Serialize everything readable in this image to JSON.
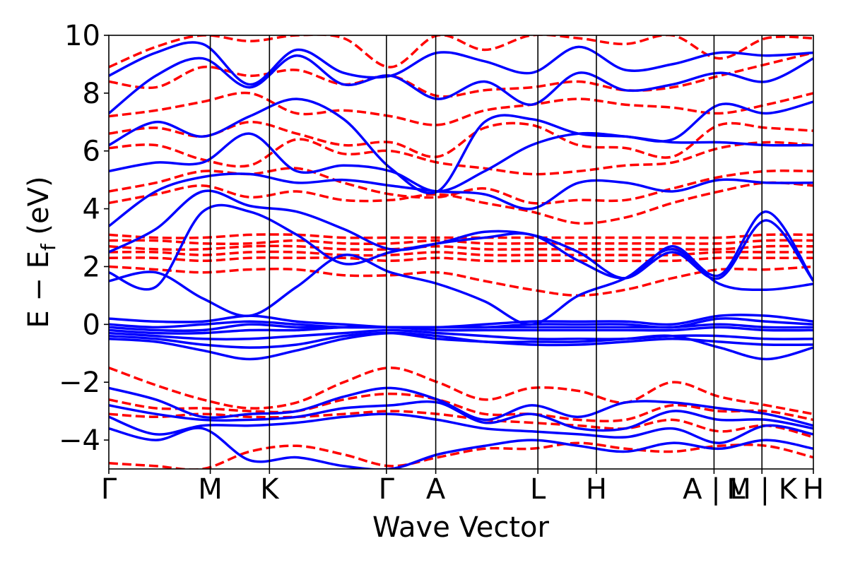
{
  "chart_data": {
    "type": "line",
    "title": "",
    "xlabel": "Wave Vector",
    "ylabel_main": "E − E",
    "ylabel_sub": "f",
    "ylabel_unit": " (eV)",
    "ylim": [
      -5,
      10
    ],
    "yticks": [
      -4,
      -2,
      0,
      2,
      4,
      6,
      8,
      10
    ],
    "ytick_labels": [
      "−4",
      "−2",
      "0",
      "2",
      "4",
      "6",
      "8",
      "10"
    ],
    "xlim": [
      0,
      1
    ],
    "kpoints": [
      {
        "label": "Γ",
        "pos": 0.0
      },
      {
        "label": "M",
        "pos": 0.144
      },
      {
        "label": "K",
        "pos": 0.228
      },
      {
        "label": "Γ",
        "pos": 0.394
      },
      {
        "label": "A",
        "pos": 0.464
      },
      {
        "label": "L",
        "pos": 0.609
      },
      {
        "label": "H",
        "pos": 0.692
      },
      {
        "label": "A | L",
        "pos": 0.859
      },
      {
        "label": "M | K",
        "pos": 0.927
      },
      {
        "label": "H",
        "pos": 1.0
      }
    ],
    "kpoint_lines": [
      0.144,
      0.228,
      0.394,
      0.464,
      0.609,
      0.692,
      0.859,
      0.927
    ],
    "grid": false,
    "legend": "none",
    "series": [
      {
        "style": "solid",
        "color": "#0000ff",
        "bands": [
          [
            8.6,
            9.4,
            9.7,
            8.3,
            9.5,
            8.7,
            8.6,
            9.4,
            9.1,
            8.7,
            9.6,
            8.8,
            9.0,
            9.4,
            9.3,
            9.4
          ],
          [
            7.3,
            8.6,
            9.2,
            8.2,
            9.3,
            8.3,
            8.6,
            7.8,
            8.4,
            7.6,
            8.7,
            8.1,
            8.3,
            8.7,
            8.4,
            9.2
          ],
          [
            6.2,
            7.0,
            6.5,
            7.2,
            7.8,
            7.1,
            5.4,
            4.6,
            7.0,
            7.1,
            6.6,
            6.5,
            6.4,
            7.6,
            7.3,
            7.7
          ],
          [
            5.3,
            5.6,
            5.6,
            6.6,
            5.3,
            5.5,
            5.3,
            4.6,
            5.3,
            6.2,
            6.6,
            6.5,
            6.3,
            6.3,
            6.2,
            6.2
          ],
          [
            3.4,
            4.6,
            5.1,
            5.2,
            4.9,
            5.0,
            4.8,
            4.6,
            4.5,
            4.0,
            4.9,
            4.9,
            4.6,
            5.0,
            4.9,
            4.9
          ],
          [
            2.5,
            3.3,
            4.6,
            4.1,
            3.9,
            3.3,
            2.6,
            2.8,
            3.2,
            3.1,
            2.5,
            1.6,
            2.7,
            1.7,
            3.9,
            1.5
          ],
          [
            1.8,
            1.3,
            3.9,
            3.9,
            3.1,
            2.1,
            2.5,
            2.8,
            3.0,
            3.1,
            2.2,
            1.6,
            2.5,
            1.6,
            3.6,
            1.5
          ],
          [
            1.5,
            1.8,
            0.9,
            0.3,
            1.3,
            2.4,
            1.8,
            1.4,
            0.8,
            0.0,
            1.0,
            1.6,
            2.6,
            1.4,
            1.2,
            1.4
          ],
          [
            0.2,
            0.1,
            0.1,
            0.3,
            0.1,
            0.0,
            -0.1,
            -0.1,
            0.0,
            0.1,
            0.1,
            0.1,
            0.0,
            0.3,
            0.3,
            0.1
          ],
          [
            0.0,
            -0.1,
            0.0,
            0.1,
            0.0,
            -0.1,
            -0.1,
            -0.1,
            -0.1,
            0.0,
            0.0,
            0.0,
            -0.1,
            0.2,
            0.1,
            0.0
          ],
          [
            -0.1,
            -0.2,
            -0.2,
            0.0,
            -0.1,
            -0.1,
            -0.1,
            -0.1,
            -0.1,
            -0.1,
            -0.1,
            -0.1,
            -0.1,
            0.0,
            -0.1,
            -0.1
          ],
          [
            -0.2,
            -0.3,
            -0.3,
            -0.2,
            -0.2,
            -0.1,
            -0.1,
            -0.2,
            -0.2,
            -0.2,
            -0.2,
            -0.2,
            -0.2,
            -0.1,
            -0.2,
            -0.2
          ],
          [
            -0.3,
            -0.4,
            -0.5,
            -0.5,
            -0.4,
            -0.3,
            -0.2,
            -0.3,
            -0.4,
            -0.5,
            -0.5,
            -0.5,
            -0.4,
            -0.4,
            -0.5,
            -0.5
          ],
          [
            -0.4,
            -0.5,
            -0.7,
            -0.8,
            -0.7,
            -0.4,
            -0.3,
            -0.5,
            -0.6,
            -0.7,
            -0.7,
            -0.6,
            -0.5,
            -0.6,
            -0.7,
            -0.7
          ],
          [
            -0.5,
            -0.6,
            -0.9,
            -1.2,
            -0.9,
            -0.5,
            -0.3,
            -0.4,
            -0.6,
            -0.6,
            -0.6,
            -0.5,
            -0.4,
            -0.8,
            -1.2,
            -0.8
          ],
          [
            -2.2,
            -2.6,
            -3.2,
            -3.1,
            -3.0,
            -2.5,
            -2.2,
            -2.6,
            -3.3,
            -2.8,
            -3.2,
            -2.7,
            -2.7,
            -2.9,
            -3.1,
            -3.5
          ],
          [
            -2.8,
            -3.1,
            -3.3,
            -3.3,
            -3.2,
            -2.9,
            -2.8,
            -2.7,
            -3.4,
            -3.1,
            -3.6,
            -3.6,
            -3.0,
            -3.3,
            -3.3,
            -3.6
          ],
          [
            -3.2,
            -3.8,
            -3.5,
            -3.5,
            -3.4,
            -3.2,
            -3.1,
            -3.3,
            -3.6,
            -3.7,
            -3.8,
            -3.9,
            -3.6,
            -4.1,
            -3.5,
            -3.8
          ],
          [
            -3.6,
            -4.0,
            -3.6,
            -4.7,
            -4.6,
            -4.9,
            -5.0,
            -4.5,
            -4.2,
            -4.0,
            -4.2,
            -4.4,
            -4.1,
            -4.3,
            -4.0,
            -4.3
          ]
        ]
      },
      {
        "style": "dashed",
        "color": "#ff0000",
        "bands": [
          [
            8.9,
            9.6,
            10.0,
            9.8,
            10.0,
            9.9,
            8.9,
            10.0,
            9.5,
            10.0,
            9.9,
            9.7,
            10.0,
            9.2,
            9.9,
            9.9
          ],
          [
            8.4,
            8.2,
            8.9,
            8.6,
            8.8,
            8.3,
            8.6,
            7.9,
            8.1,
            8.2,
            8.4,
            8.1,
            8.2,
            8.6,
            9.0,
            9.4
          ],
          [
            7.2,
            7.4,
            7.7,
            8.0,
            7.3,
            7.4,
            7.2,
            6.9,
            7.4,
            7.6,
            7.8,
            7.6,
            7.5,
            7.3,
            7.6,
            8.0
          ],
          [
            6.6,
            6.8,
            6.5,
            7.0,
            6.6,
            6.2,
            6.3,
            5.8,
            6.8,
            6.9,
            6.2,
            6.1,
            5.8,
            6.9,
            6.8,
            6.7
          ],
          [
            6.1,
            6.2,
            5.7,
            5.5,
            6.4,
            5.9,
            6.0,
            5.6,
            5.4,
            5.2,
            5.3,
            5.5,
            5.6,
            6.1,
            6.3,
            6.2
          ],
          [
            4.6,
            4.9,
            5.3,
            5.2,
            5.4,
            4.9,
            4.5,
            4.4,
            4.7,
            4.2,
            4.3,
            4.3,
            4.7,
            5.1,
            5.3,
            5.3
          ],
          [
            4.2,
            4.5,
            4.8,
            4.4,
            4.6,
            4.3,
            4.3,
            4.5,
            4.2,
            3.9,
            3.5,
            3.7,
            4.2,
            4.6,
            4.9,
            4.8
          ],
          [
            3.1,
            3.0,
            3.0,
            3.1,
            3.1,
            3.0,
            3.0,
            3.0,
            3.0,
            3.0,
            3.0,
            3.0,
            3.0,
            3.0,
            3.1,
            3.1
          ],
          [
            2.9,
            2.9,
            2.8,
            2.8,
            2.9,
            2.8,
            2.8,
            2.9,
            2.8,
            2.8,
            2.8,
            2.8,
            2.8,
            2.8,
            2.9,
            2.9
          ],
          [
            2.7,
            2.6,
            2.6,
            2.7,
            2.7,
            2.6,
            2.6,
            2.7,
            2.6,
            2.6,
            2.6,
            2.6,
            2.6,
            2.6,
            2.7,
            2.7
          ],
          [
            2.5,
            2.5,
            2.4,
            2.5,
            2.5,
            2.4,
            2.4,
            2.5,
            2.4,
            2.4,
            2.4,
            2.4,
            2.4,
            2.5,
            2.5,
            2.5
          ],
          [
            2.3,
            2.3,
            2.2,
            2.3,
            2.3,
            2.3,
            2.2,
            2.3,
            2.2,
            2.2,
            2.2,
            2.2,
            2.2,
            2.3,
            2.3,
            2.3
          ],
          [
            2.0,
            1.9,
            1.8,
            1.9,
            1.9,
            1.7,
            1.7,
            1.8,
            1.5,
            1.2,
            1.0,
            1.2,
            1.6,
            1.9,
            1.9,
            2.0
          ],
          [
            -1.5,
            -2.1,
            -2.6,
            -2.9,
            -2.7,
            -2.0,
            -1.5,
            -2.0,
            -2.6,
            -2.2,
            -2.3,
            -2.7,
            -2.0,
            -2.5,
            -2.8,
            -3.1
          ],
          [
            -2.6,
            -2.9,
            -2.9,
            -3.0,
            -3.0,
            -2.6,
            -2.4,
            -2.6,
            -3.1,
            -3.1,
            -3.3,
            -3.3,
            -2.8,
            -3.0,
            -3.0,
            -3.3
          ],
          [
            -3.1,
            -3.2,
            -3.1,
            -3.2,
            -3.2,
            -3.1,
            -3.0,
            -3.1,
            -3.3,
            -3.4,
            -3.5,
            -3.6,
            -3.3,
            -3.7,
            -3.5,
            -3.9
          ],
          [
            -4.8,
            -4.9,
            -5.0,
            -4.4,
            -4.2,
            -4.5,
            -4.9,
            -4.6,
            -4.3,
            -4.3,
            -4.1,
            -4.3,
            -4.4,
            -4.2,
            -4.2,
            -4.6
          ]
        ]
      }
    ]
  }
}
